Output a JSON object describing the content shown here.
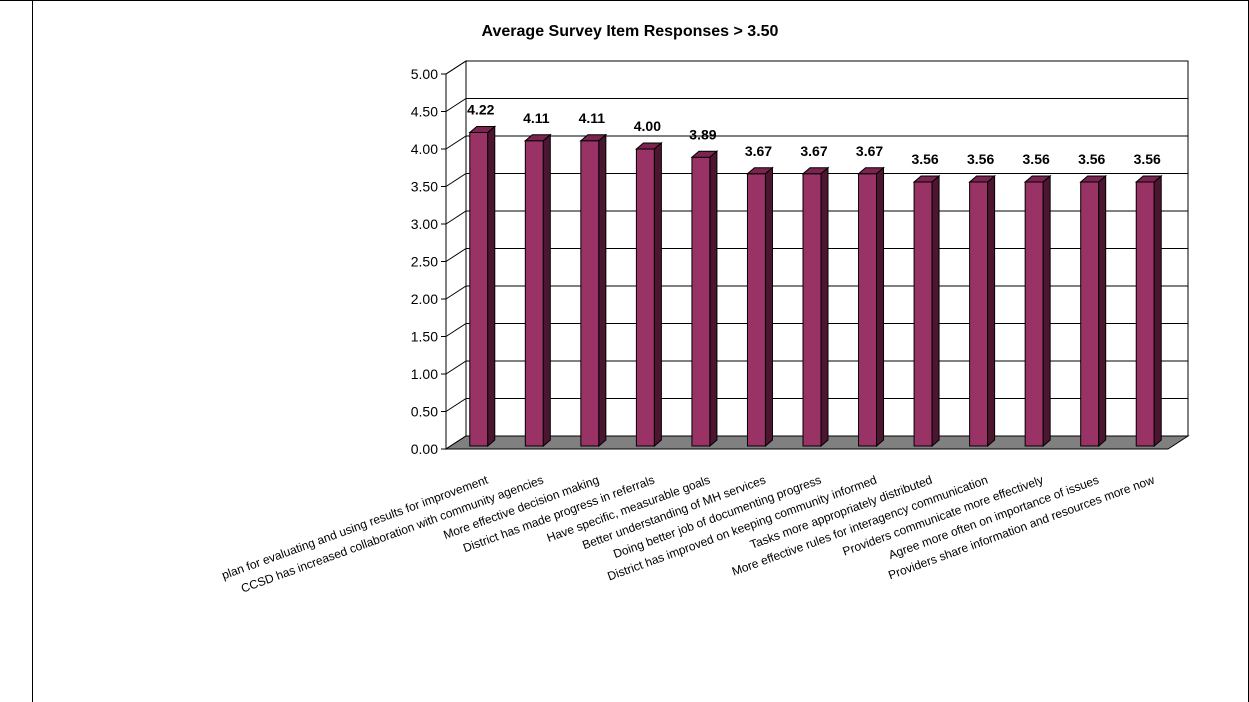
{
  "chart_data": {
    "type": "bar",
    "title": "Average Survey Item Responses > 3.50",
    "xlabel": "",
    "ylabel": "",
    "ylim": [
      0,
      5
    ],
    "y_ticks": [
      "0.00",
      "0.50",
      "1.00",
      "1.50",
      "2.00",
      "2.50",
      "3.00",
      "3.50",
      "4.00",
      "4.50",
      "5.00"
    ],
    "grid": true,
    "three_d": true,
    "bar_color": "#993366",
    "floor_color": "#808080",
    "categories": [
      "plan for evaluating and using results for improvement",
      "CCSD has increased collaboration with community agencies",
      "More effective decision making",
      "District has made progress in referrals",
      "Have specific, measurable goals",
      "Better understanding of MH services",
      "Doing better job of documenting progress",
      "District has improved on keeping community informed",
      "Tasks more appropriately distributed",
      "More effective rules for interagency communication",
      "Providers communicate more effectively",
      "Agree more often on importance of issues",
      "Providers share information and resources more now"
    ],
    "values": [
      4.22,
      4.11,
      4.11,
      4.0,
      3.89,
      3.67,
      3.67,
      3.67,
      3.56,
      3.56,
      3.56,
      3.56,
      3.56
    ],
    "value_labels": [
      "4.22",
      "4.11",
      "4.11",
      "4.00",
      "3.89",
      "3.67",
      "3.67",
      "3.67",
      "3.56",
      "3.56",
      "3.56",
      "3.56",
      "3.56"
    ]
  }
}
